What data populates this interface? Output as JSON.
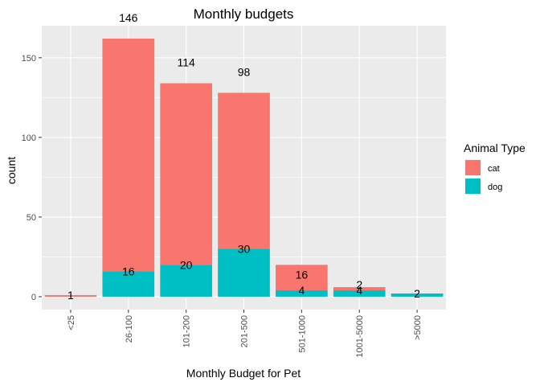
{
  "chart_data": {
    "type": "bar",
    "stacked": true,
    "title": "Monthly budgets",
    "xlabel": "Monthly Budget for Pet",
    "ylabel": "count",
    "categories": [
      "<25",
      "26-100",
      "101-200",
      "201-500",
      "501-1000",
      "1001-5000",
      ">5000"
    ],
    "series": [
      {
        "name": "cat",
        "color": "#F8766D",
        "values": [
          1,
          146,
          114,
          98,
          16,
          2,
          0
        ]
      },
      {
        "name": "dog",
        "color": "#00BFC4",
        "values": [
          0,
          16,
          20,
          30,
          4,
          4,
          2
        ]
      }
    ],
    "data_labels": [
      {
        "category": "<25",
        "text": "1",
        "value_position": 1
      },
      {
        "category": "26-100",
        "text": "146",
        "value_position": 162
      },
      {
        "category": "26-100",
        "text": "16",
        "value_position": 16
      },
      {
        "category": "101-200",
        "text": "114",
        "value_position": 134
      },
      {
        "category": "101-200",
        "text": "20",
        "value_position": 20
      },
      {
        "category": "201-500",
        "text": "98",
        "value_position": 128
      },
      {
        "category": "201-500",
        "text": "30",
        "value_position": 30
      },
      {
        "category": "501-1000",
        "text": "16",
        "value_position": 20
      },
      {
        "category": "501-1000",
        "text": "4",
        "value_position": 4
      },
      {
        "category": "1001-5000",
        "text": "2",
        "value_position": 6
      },
      {
        "category": "1001-5000",
        "text": "4",
        "value_position": 4
      },
      {
        "category": ">5000",
        "text": "2",
        "value_position": 2
      }
    ],
    "y_ticks": [
      0,
      50,
      100,
      150
    ],
    "ylim": [
      -8.1,
      170.1
    ],
    "grid": true,
    "panel_background": "#EBEBEB",
    "legend": {
      "title": "Animal Type",
      "position": "right",
      "entries": [
        "cat",
        "dog"
      ]
    },
    "x_tick_rotation": "vertical"
  }
}
